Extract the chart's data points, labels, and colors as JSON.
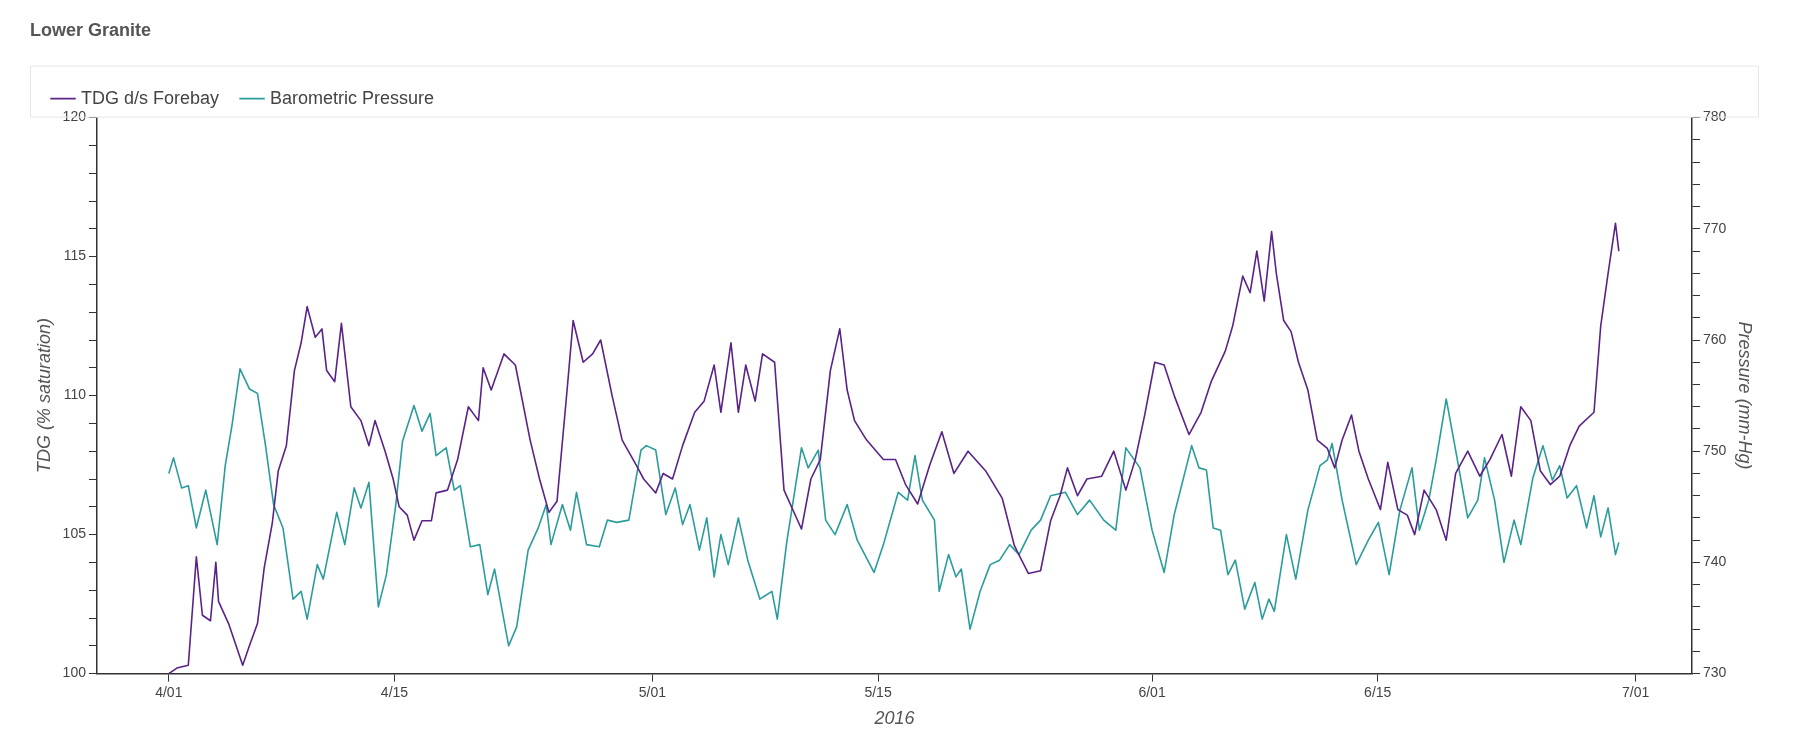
{
  "chart_data": {
    "type": "line",
    "title": "Lower Granite",
    "xlabel": "2016",
    "ylabel": "TDG (% saturation)",
    "y2label": "Pressure (mm-Hg)",
    "legend": "top left",
    "grid": false,
    "marker": "none",
    "line_style": "solid",
    "xlim": [
      "2016-03-27T13:00",
      "2016-07-04T12:00"
    ],
    "xticks": [
      {
        "value": "2016-04-01",
        "label": "4/01"
      },
      {
        "value": "2016-04-15",
        "label": "4/15"
      },
      {
        "value": "2016-05-01",
        "label": "5/01"
      },
      {
        "value": "2016-05-15",
        "label": "5/15"
      },
      {
        "value": "2016-06-01",
        "label": "6/01"
      },
      {
        "value": "2016-06-15",
        "label": "6/15"
      },
      {
        "value": "2016-07-01",
        "label": "7/01"
      }
    ],
    "ylim": [
      100,
      120
    ],
    "yticks": [
      100,
      {
        "value": 101,
        "label": null
      },
      {
        "value": 102,
        "label": null
      },
      {
        "value": 103,
        "label": null
      },
      {
        "value": 104,
        "label": null
      },
      105,
      {
        "value": 106,
        "label": null
      },
      {
        "value": 107,
        "label": null
      },
      {
        "value": 108,
        "label": null
      },
      {
        "value": 109,
        "label": null
      },
      110,
      {
        "value": 111,
        "label": null
      },
      {
        "value": 112,
        "label": null
      },
      {
        "value": 113,
        "label": null
      },
      {
        "value": 114,
        "label": null
      },
      115,
      {
        "value": 116,
        "label": null
      },
      {
        "value": 117,
        "label": null
      },
      {
        "value": 118,
        "label": null
      },
      {
        "value": 119,
        "label": null
      },
      120
    ],
    "y2lim": [
      730,
      780
    ],
    "y2ticks": [
      730,
      {
        "value": 732,
        "label": null
      },
      {
        "value": 734,
        "label": null
      },
      {
        "value": 736,
        "label": null
      },
      {
        "value": 738,
        "label": null
      },
      740,
      {
        "value": 742,
        "label": null
      },
      {
        "value": 744,
        "label": null
      },
      {
        "value": 746,
        "label": null
      },
      {
        "value": 748,
        "label": null
      },
      750,
      {
        "value": 752,
        "label": null
      },
      {
        "value": 754,
        "label": null
      },
      {
        "value": 756,
        "label": null
      },
      {
        "value": 758,
        "label": null
      },
      760,
      {
        "value": 762,
        "label": null
      },
      {
        "value": 764,
        "label": null
      },
      {
        "value": 766,
        "label": null
      },
      {
        "value": 768,
        "label": null
      },
      770,
      {
        "value": 772,
        "label": null
      },
      {
        "value": 774,
        "label": null
      },
      {
        "value": 776,
        "label": null
      },
      {
        "value": 778,
        "label": null
      },
      780
    ],
    "series": [
      {
        "name": "TDG d/s Forebay",
        "color": "#5a2388",
        "x": [
          "2016-04-01T00:00",
          "2016-04-01T12:00",
          "2016-04-02T05:00",
          "2016-04-02T17:00",
          "2016-04-03T02:00",
          "2016-04-03T14:00",
          "2016-04-03T22:00",
          "2016-04-04T02:00",
          "2016-04-04T17:00",
          "2016-04-05T14:00",
          "2016-04-06T00:00",
          "2016-04-06T12:00",
          "2016-04-06T22:00",
          "2016-04-07T10:00",
          "2016-04-07T19:00",
          "2016-04-08T07:00",
          "2016-04-08T19:00",
          "2016-04-09T05:00",
          "2016-04-09T14:00",
          "2016-04-10T02:00",
          "2016-04-10T12:00",
          "2016-04-10T19:00",
          "2016-04-11T07:00",
          "2016-04-11T17:00",
          "2016-04-12T07:00",
          "2016-04-12T22:00",
          "2016-04-13T10:00",
          "2016-04-13T19:00",
          "2016-04-14T10:00",
          "2016-04-14T22:00",
          "2016-04-15T07:00",
          "2016-04-15T19:00",
          "2016-04-16T05:00",
          "2016-04-16T17:00",
          "2016-04-17T07:00",
          "2016-04-17T14:00",
          "2016-04-18T07:00",
          "2016-04-18T22:00",
          "2016-04-19T14:00",
          "2016-04-20T05:00",
          "2016-04-20T12:00",
          "2016-04-21T00:00",
          "2016-04-21T19:00",
          "2016-04-22T12:00",
          "2016-04-23T10:00",
          "2016-04-24T00:00",
          "2016-04-24T14:00",
          "2016-04-25T02:00",
          "2016-04-25T17:00",
          "2016-04-26T02:00",
          "2016-04-26T17:00",
          "2016-04-27T07:00",
          "2016-04-27T19:00",
          "2016-04-28T12:00",
          "2016-04-29T03:00",
          "2016-04-30T00:00",
          "2016-04-30T11:00",
          "2016-05-01T05:00",
          "2016-05-01T16:00",
          "2016-05-02T06:00",
          "2016-05-02T21:00",
          "2016-05-03T15:00",
          "2016-05-04T05:00",
          "2016-05-04T20:00",
          "2016-05-05T06:00",
          "2016-05-05T21:00",
          "2016-05-06T08:00",
          "2016-05-06T19:00",
          "2016-05-07T09:00",
          "2016-05-07T20:00",
          "2016-05-08T14:00",
          "2016-05-09T04:00",
          "2016-05-10T06:00",
          "2016-05-10T20:00",
          "2016-05-11T10:00",
          "2016-05-12T01:00",
          "2016-05-12T15:00",
          "2016-05-13T02:00",
          "2016-05-13T13:00",
          "2016-05-14T07:00",
          "2016-05-15T08:00",
          "2016-05-16T02:00",
          "2016-05-16T17:00",
          "2016-05-17T11:00",
          "2016-05-18T05:00",
          "2016-05-18T23:00",
          "2016-05-19T17:00",
          "2016-05-20T14:00",
          "2016-05-21T16:00",
          "2016-05-22T17:00",
          "2016-05-23T11:00",
          "2016-05-24T08:00",
          "2016-05-25T02:00",
          "2016-05-25T17:00",
          "2016-05-26T07:00",
          "2016-05-26T18:00",
          "2016-05-27T09:00",
          "2016-05-27T23:00",
          "2016-05-28T21:00",
          "2016-05-29T15:00",
          "2016-05-30T09:00",
          "2016-05-30T23:00",
          "2016-05-31T13:00",
          "2016-06-01T04:00",
          "2016-06-01T18:00",
          "2016-06-02T09:00",
          "2016-06-03T07:00",
          "2016-06-04T01:00",
          "2016-06-04T16:00",
          "2016-06-05T13:00",
          "2016-06-06T00:00",
          "2016-06-06T15:00",
          "2016-06-07T02:00",
          "2016-06-07T12:00",
          "2016-06-07T23:00",
          "2016-06-08T10:00",
          "2016-06-08T17:00",
          "2016-06-09T04:00",
          "2016-06-09T15:00",
          "2016-06-10T02:00",
          "2016-06-10T16:00",
          "2016-06-11T06:00",
          "2016-06-11T21:00",
          "2016-06-12T08:00",
          "2016-06-12T19:00",
          "2016-06-13T09:00",
          "2016-06-13T20:00",
          "2016-06-14T10:00",
          "2016-06-15T04:00",
          "2016-06-15T15:00",
          "2016-06-16T06:00",
          "2016-06-16T20:00",
          "2016-06-17T07:00",
          "2016-06-17T21:00",
          "2016-06-18T15:00",
          "2016-06-19T06:00",
          "2016-06-19T20:00",
          "2016-06-20T14:00",
          "2016-06-21T08:00",
          "2016-06-21T23:00",
          "2016-06-22T17:00",
          "2016-06-23T07:00",
          "2016-06-23T21:00",
          "2016-06-24T12:00",
          "2016-06-25T02:00",
          "2016-06-25T17:00",
          "2016-06-26T07:00",
          "2016-06-26T22:00",
          "2016-06-27T12:00",
          "2016-06-28T10:00",
          "2016-06-28T20:00",
          "2016-06-29T07:00",
          "2016-06-29T18:00",
          "2016-06-29T23:00"
        ],
        "values": [
          100.0,
          100.2,
          100.3,
          104.2,
          102.1,
          101.9,
          104.0,
          102.6,
          101.8,
          100.3,
          101.0,
          101.8,
          103.8,
          105.4,
          107.3,
          108.2,
          110.9,
          111.9,
          113.2,
          112.1,
          112.4,
          110.9,
          110.5,
          112.6,
          109.6,
          109.1,
          108.2,
          109.1,
          108.0,
          107.0,
          106.0,
          105.7,
          104.8,
          105.5,
          105.5,
          106.5,
          106.6,
          107.7,
          109.6,
          109.1,
          111.0,
          110.2,
          111.5,
          111.1,
          108.4,
          107.0,
          105.8,
          106.2,
          110.2,
          112.7,
          111.2,
          111.5,
          112.0,
          110.0,
          108.4,
          107.5,
          107.0,
          106.5,
          107.2,
          107.0,
          108.2,
          109.4,
          109.8,
          111.1,
          109.4,
          111.9,
          109.4,
          111.1,
          109.8,
          111.5,
          111.2,
          106.6,
          105.2,
          107.0,
          107.7,
          110.9,
          112.4,
          110.2,
          109.1,
          108.4,
          107.7,
          107.7,
          106.8,
          106.1,
          107.5,
          108.7,
          107.2,
          108.0,
          107.3,
          106.3,
          104.6,
          103.6,
          103.7,
          105.5,
          106.4,
          107.4,
          106.4,
          107.0,
          107.1,
          108.0,
          106.6,
          107.7,
          109.3,
          111.2,
          111.1,
          110.0,
          108.6,
          109.4,
          110.5,
          111.6,
          112.5,
          114.3,
          113.7,
          115.2,
          113.4,
          115.9,
          114.4,
          112.7,
          112.3,
          111.2,
          110.2,
          108.4,
          108.1,
          107.4,
          108.4,
          109.3,
          108.0,
          107.0,
          105.9,
          107.6,
          105.9,
          105.7,
          105.0,
          106.6,
          105.9,
          104.8,
          107.2,
          108.0,
          107.1,
          107.7,
          108.6,
          107.1,
          109.6,
          109.1,
          107.3,
          106.8,
          107.1,
          108.2,
          108.9,
          109.4,
          112.5,
          114.4,
          116.2,
          115.2
        ]
      },
      {
        "name": "Barometric Pressure",
        "color": "#2a9d9b",
        "axis": "y2",
        "x": [
          "2016-04-01T00:00",
          "2016-04-01T07:00",
          "2016-04-01T19:00",
          "2016-04-02T05:00",
          "2016-04-02T17:00",
          "2016-04-03T07:00",
          "2016-04-04T00:00",
          "2016-04-04T12:00",
          "2016-04-04T22:00",
          "2016-04-05T10:00",
          "2016-04-06T00:00",
          "2016-04-06T12:00",
          "2016-04-07T00:00",
          "2016-04-07T12:00",
          "2016-04-08T02:00",
          "2016-04-08T17:00",
          "2016-04-09T05:00",
          "2016-04-09T14:00",
          "2016-04-10T05:00",
          "2016-04-10T14:00",
          "2016-04-11T10:00",
          "2016-04-11T22:00",
          "2016-04-12T12:00",
          "2016-04-12T22:00",
          "2016-04-13T10:00",
          "2016-04-14T00:00",
          "2016-04-14T12:00",
          "2016-04-15T02:00",
          "2016-04-15T12:00",
          "2016-04-16T05:00",
          "2016-04-16T17:00",
          "2016-04-17T05:00",
          "2016-04-17T14:00",
          "2016-04-18T05:00",
          "2016-04-18T17:00",
          "2016-04-19T02:00",
          "2016-04-19T17:00",
          "2016-04-20T07:00",
          "2016-04-20T19:00",
          "2016-04-21T05:00",
          "2016-04-22T02:00",
          "2016-04-22T14:00",
          "2016-04-23T07:00",
          "2016-04-23T22:00",
          "2016-04-24T10:00",
          "2016-04-24T17:00",
          "2016-04-25T10:00",
          "2016-04-25T22:00",
          "2016-04-26T07:00",
          "2016-04-26T22:00",
          "2016-04-27T17:00",
          "2016-04-28T05:00",
          "2016-04-28T19:00",
          "2016-04-29T13:00",
          "2016-04-30T07:00",
          "2016-04-30T15:00",
          "2016-05-01T05:00",
          "2016-05-01T20:00",
          "2016-05-02T10:00",
          "2016-05-02T21:00",
          "2016-05-03T08:00",
          "2016-05-03T22:00",
          "2016-05-04T09:00",
          "2016-05-04T20:00",
          "2016-05-05T06:00",
          "2016-05-05T17:00",
          "2016-05-06T08:00",
          "2016-05-06T22:00",
          "2016-05-07T16:00",
          "2016-05-08T10:00",
          "2016-05-08T18:00",
          "2016-05-09T08:00",
          "2016-05-10T06:00",
          "2016-05-10T16:00",
          "2016-05-11T07:00",
          "2016-05-11T18:00",
          "2016-05-12T08:00",
          "2016-05-13T02:00",
          "2016-05-13T17:00",
          "2016-05-14T18:00",
          "2016-05-15T08:00",
          "2016-05-16T06:00",
          "2016-05-16T20:00",
          "2016-05-17T07:00",
          "2016-05-17T18:00",
          "2016-05-18T12:00",
          "2016-05-18T19:00",
          "2016-05-19T09:00",
          "2016-05-19T20:00",
          "2016-05-20T04:00",
          "2016-05-20T17:00",
          "2016-05-21T08:00",
          "2016-05-21T23:00",
          "2016-05-22T13:00",
          "2016-05-23T04:00",
          "2016-05-23T18:00",
          "2016-05-24T12:00",
          "2016-05-25T02:00",
          "2016-05-25T17:00",
          "2016-05-26T15:00",
          "2016-05-27T09:00",
          "2016-05-28T03:00",
          "2016-05-29T00:00",
          "2016-05-29T18:00",
          "2016-05-30T09:00",
          "2016-05-31T06:00",
          "2016-06-01T00:00",
          "2016-06-01T18:00",
          "2016-06-02T09:00",
          "2016-06-03T11:00",
          "2016-06-03T22:00",
          "2016-06-04T09:00",
          "2016-06-04T19:00",
          "2016-06-05T06:00",
          "2016-06-05T17:00",
          "2016-06-06T04:00",
          "2016-06-06T18:00",
          "2016-06-07T09:00",
          "2016-06-07T20:00",
          "2016-06-08T06:00",
          "2016-06-08T14:00",
          "2016-06-09T08:00",
          "2016-06-09T22:00",
          "2016-06-10T16:00",
          "2016-06-11T10:00",
          "2016-06-11T21:00",
          "2016-06-12T04:00",
          "2016-06-12T19:00",
          "2016-06-13T16:00",
          "2016-06-14T10:00",
          "2016-06-15T01:00",
          "2016-06-15T17:00",
          "2016-06-16T09:00",
          "2016-06-17T03:00",
          "2016-06-17T14:00",
          "2016-06-18T04:00",
          "2016-06-18T15:00",
          "2016-06-19T06:00",
          "2016-06-19T20:00",
          "2016-06-20T14:00",
          "2016-06-21T05:00",
          "2016-06-21T15:00",
          "2016-06-22T06:00",
          "2016-06-22T20:00",
          "2016-06-23T11:00",
          "2016-06-23T21:00",
          "2016-06-24T15:00",
          "2016-06-25T06:00",
          "2016-06-25T20:00",
          "2016-06-26T07:00",
          "2016-06-26T18:00",
          "2016-06-27T08:00",
          "2016-06-27T23:00",
          "2016-06-28T10:00",
          "2016-06-28T20:00",
          "2016-06-29T07:00",
          "2016-06-29T18:00",
          "2016-06-29T23:00"
        ],
        "values": [
          748.0,
          749.4,
          746.7,
          746.9,
          743.1,
          746.5,
          741.6,
          748.7,
          752.3,
          757.4,
          755.6,
          755.2,
          750.5,
          745.2,
          743.1,
          736.7,
          737.4,
          734.9,
          739.8,
          738.5,
          744.5,
          741.6,
          746.7,
          744.9,
          747.2,
          736.0,
          738.9,
          745.2,
          750.9,
          754.1,
          751.8,
          753.4,
          749.6,
          750.3,
          746.5,
          746.9,
          741.4,
          741.6,
          737.1,
          739.4,
          732.5,
          734.2,
          741.1,
          743.1,
          745.2,
          741.6,
          745.2,
          742.9,
          746.3,
          741.6,
          741.4,
          743.8,
          743.6,
          743.8,
          750.1,
          750.5,
          750.1,
          744.3,
          746.7,
          743.4,
          745.2,
          741.1,
          744.0,
          738.7,
          742.5,
          739.8,
          744.0,
          740.2,
          736.7,
          737.4,
          734.9,
          741.8,
          750.3,
          748.5,
          750.1,
          743.8,
          742.5,
          745.2,
          742.0,
          739.1,
          741.6,
          746.3,
          745.6,
          749.6,
          745.6,
          743.8,
          737.4,
          740.7,
          738.7,
          739.4,
          734.0,
          737.4,
          739.8,
          740.2,
          741.6,
          740.7,
          742.9,
          743.8,
          746.0,
          746.3,
          744.3,
          745.6,
          743.8,
          742.9,
          750.3,
          748.5,
          742.9,
          739.1,
          744.3,
          750.5,
          748.5,
          748.3,
          743.1,
          742.9,
          738.9,
          740.2,
          735.8,
          738.2,
          734.9,
          736.7,
          735.6,
          742.5,
          738.5,
          744.7,
          748.7,
          749.2,
          750.7,
          745.6,
          739.8,
          742.0,
          743.6,
          738.9,
          744.7,
          748.5,
          742.9,
          745.6,
          749.2,
          754.7,
          750.1,
          744.0,
          745.6,
          749.4,
          745.6,
          740.0,
          743.8,
          741.6,
          747.6,
          750.5,
          747.4,
          748.7,
          745.8,
          746.9,
          743.1,
          746.0,
          742.3,
          744.9,
          740.7,
          741.8
        ]
      }
    ]
  }
}
